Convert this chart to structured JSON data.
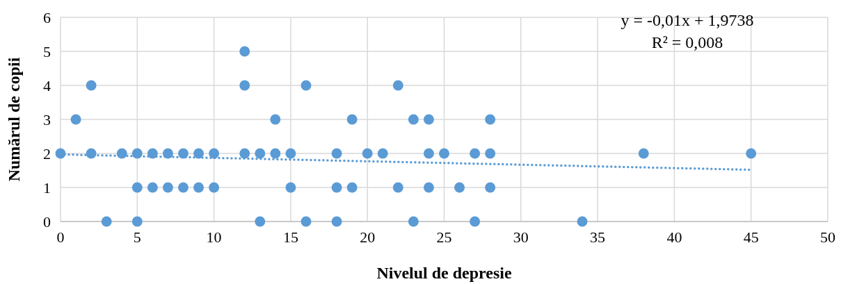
{
  "chart_data": {
    "type": "scatter",
    "xlabel": "Nivelul de depresie",
    "ylabel": "Numărul de copii",
    "xlim": [
      0,
      50
    ],
    "xticks": [
      0,
      5,
      10,
      15,
      20,
      25,
      30,
      35,
      40,
      45,
      50
    ],
    "ylim": [
      0,
      6
    ],
    "yticks": [
      0,
      1,
      2,
      3,
      4,
      5,
      6
    ],
    "grid": true,
    "marker": "circle",
    "annotations": [
      "y = -0,01x + 1,9738",
      "R² = 0,008"
    ],
    "series": [
      {
        "color": "#5b9bd5",
        "x": [
          12,
          2,
          12,
          16,
          22,
          1,
          14,
          19,
          23,
          24,
          28,
          0,
          2,
          4,
          5,
          6,
          7,
          8,
          9,
          10,
          12,
          13,
          14,
          15,
          18,
          20,
          21,
          24,
          25,
          27,
          28,
          38,
          45,
          5,
          6,
          7,
          8,
          9,
          10,
          15,
          18,
          19,
          22,
          24,
          26,
          28,
          3,
          5,
          13,
          16,
          18,
          23,
          27,
          34
        ],
        "values": [
          5,
          4,
          4,
          4,
          4,
          3,
          3,
          3,
          3,
          3,
          3,
          2,
          2,
          2,
          2,
          2,
          2,
          2,
          2,
          2,
          2,
          2,
          2,
          2,
          2,
          2,
          2,
          2,
          2,
          2,
          2,
          2,
          2,
          1,
          1,
          1,
          1,
          1,
          1,
          1,
          1,
          1,
          1,
          1,
          1,
          1,
          0,
          0,
          0,
          0,
          0,
          0,
          0,
          0
        ]
      },
      {
        "type": "line",
        "color": "#5b9bd5",
        "line_style": "dotted",
        "marker": "none",
        "x": [
          0,
          45
        ],
        "values": [
          1.97,
          1.52
        ]
      }
    ]
  }
}
